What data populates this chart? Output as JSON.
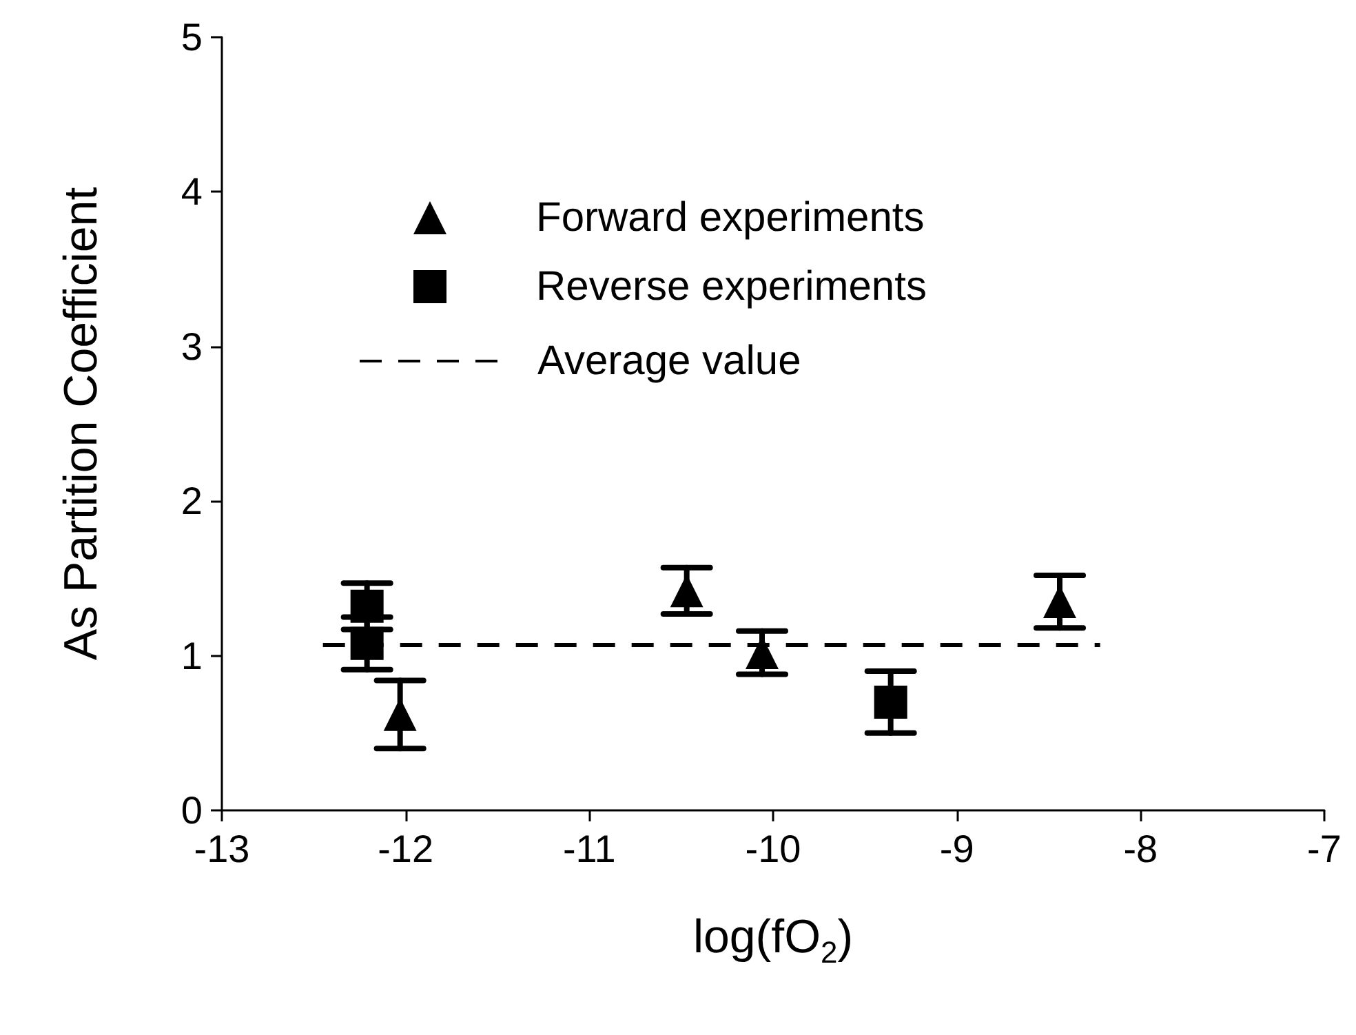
{
  "chart_data": {
    "type": "scatter",
    "xlabel": "log(fO$_{2}$)",
    "ylabel": "As Partition Coefficient",
    "xlim": [
      -13,
      -7
    ],
    "xticks": [
      -13,
      -12,
      -11,
      -10,
      -9,
      -8,
      -7
    ],
    "ylim": [
      0,
      5
    ],
    "yticks": [
      0,
      1,
      2,
      3,
      4,
      5
    ],
    "grid": false,
    "legend": "top",
    "series": [
      {
        "name": "Forward experiments",
        "type": "scatter",
        "marker": "triangle",
        "color": "#000000",
        "x": [
          -12.03,
          -10.47,
          -10.06,
          -8.44
        ],
        "values": [
          0.62,
          1.42,
          1.02,
          1.35
        ],
        "errors": [
          0.22,
          0.15,
          0.14,
          0.17
        ]
      },
      {
        "name": "Reverse experiments",
        "type": "scatter",
        "marker": "square",
        "color": "#000000",
        "x": [
          -12.21,
          -12.21,
          -9.36
        ],
        "values": [
          1.32,
          1.08,
          0.7
        ],
        "errors": [
          0.15,
          0.17,
          0.2
        ]
      },
      {
        "name": "Average value",
        "type": "line",
        "line_style": "dashed",
        "marker": "none",
        "color": "#000000",
        "x": [
          -12.45,
          -8.22
        ],
        "values": [
          1.07,
          1.07
        ]
      }
    ]
  }
}
